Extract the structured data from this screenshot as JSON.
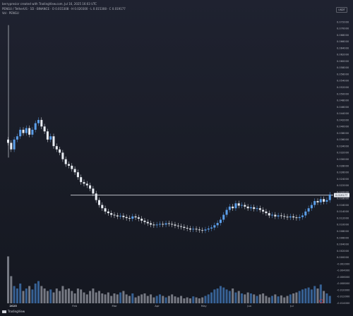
{
  "header": {
    "credit": "berrypresior created with TradingView.com, Jul 16, 2025 16:03 UTC",
    "symbol_line": "PENGU / TetherUS · 1D · BINANCE · O 0.015308 · H 0.020300 · L 0.015308 · C 0.019177",
    "volume_label": "Vol · PENGU"
  },
  "scale": {
    "unit_badge": "USDT"
  },
  "footer": {
    "brand": "TradingView"
  },
  "chart_data": {
    "type": "candlestick",
    "x": [
      "2025",
      "Feb",
      "Mar",
      "Apr",
      "May",
      "Jun",
      "Jul"
    ],
    "price_axis_ticks": [
      "0.072000",
      "0.070000",
      "0.068000",
      "0.066000",
      "0.064000",
      "0.062000",
      "0.060000",
      "0.058000",
      "0.056000",
      "0.054000",
      "0.052000",
      "0.050000",
      "0.048000",
      "0.046000",
      "0.044000",
      "0.042000",
      "0.040000",
      "0.038000",
      "0.036000",
      "0.034000",
      "0.032000",
      "0.030000",
      "0.028000",
      "0.026000",
      "0.024000",
      "0.022000",
      "0.020000",
      "0.018000",
      "0.016000",
      "0.014000",
      "0.012000",
      "0.010000",
      "0.008000",
      "0.006000",
      "0.004000",
      "0.002000",
      "0.000000",
      "-0.002000",
      "-0.004000",
      "-0.006000",
      "-0.008000",
      "-0.010000",
      "-0.012000",
      "-0.014000"
    ],
    "current_price_label": "0.019177",
    "horizontal_level": 0.019,
    "ylim": [
      -0.0145,
      0.0735
    ],
    "price_series": [
      0.035,
      0.033,
      0.036,
      0.037,
      0.039,
      0.038,
      0.0395,
      0.0375,
      0.039,
      0.041,
      0.042,
      0.04,
      0.0385,
      0.036,
      0.037,
      0.034,
      0.033,
      0.032,
      0.03,
      0.0285,
      0.028,
      0.027,
      0.026,
      0.0245,
      0.023,
      0.0225,
      0.022,
      0.021,
      0.0195,
      0.0175,
      0.016,
      0.015,
      0.014,
      0.0135,
      0.013,
      0.0128,
      0.0125,
      0.0127,
      0.0123,
      0.012,
      0.0118,
      0.0125,
      0.0122,
      0.0118,
      0.0112,
      0.0108,
      0.0104,
      0.01,
      0.0098,
      0.01,
      0.0102,
      0.01,
      0.0104,
      0.0102,
      0.01,
      0.0097,
      0.0095,
      0.0093,
      0.009,
      0.0088,
      0.0085,
      0.0087,
      0.0085,
      0.0083,
      0.0082,
      0.0085,
      0.0088,
      0.0091,
      0.0098,
      0.0105,
      0.0115,
      0.013,
      0.0145,
      0.0155,
      0.015,
      0.0165,
      0.0158,
      0.016,
      0.0155,
      0.015,
      0.0153,
      0.0148,
      0.015,
      0.0145,
      0.014,
      0.0135,
      0.0128,
      0.013,
      0.0125,
      0.0128,
      0.0126,
      0.0124,
      0.0122,
      0.0125,
      0.0122,
      0.012,
      0.0123,
      0.0128,
      0.014,
      0.015,
      0.016,
      0.0172,
      0.0168,
      0.0178,
      0.017,
      0.0175,
      0.0192
    ],
    "volume_series": [
      0.95,
      0.55,
      0.35,
      0.3,
      0.4,
      0.25,
      0.3,
      0.35,
      0.28,
      0.4,
      0.45,
      0.35,
      0.3,
      0.25,
      0.28,
      0.22,
      0.3,
      0.25,
      0.35,
      0.28,
      0.3,
      0.25,
      0.2,
      0.3,
      0.28,
      0.22,
      0.18,
      0.25,
      0.3,
      0.22,
      0.25,
      0.2,
      0.18,
      0.22,
      0.15,
      0.2,
      0.18,
      0.22,
      0.25,
      0.18,
      0.15,
      0.2,
      0.12,
      0.15,
      0.18,
      0.2,
      0.15,
      0.18,
      0.12,
      0.15,
      0.18,
      0.15,
      0.12,
      0.15,
      0.18,
      0.14,
      0.12,
      0.15,
      0.1,
      0.12,
      0.1,
      0.14,
      0.12,
      0.1,
      0.12,
      0.15,
      0.18,
      0.22,
      0.28,
      0.3,
      0.35,
      0.32,
      0.28,
      0.25,
      0.3,
      0.22,
      0.25,
      0.2,
      0.18,
      0.22,
      0.2,
      0.18,
      0.15,
      0.18,
      0.2,
      0.15,
      0.12,
      0.15,
      0.18,
      0.14,
      0.16,
      0.12,
      0.15,
      0.18,
      0.2,
      0.22,
      0.25,
      0.28,
      0.3,
      0.32,
      0.28,
      0.35,
      0.3,
      0.38,
      0.25,
      0.2,
      0.15
    ],
    "colors": {
      "up": "#5b9ee9",
      "down": "#e8ecf2",
      "volume": "#878b94",
      "volume_up": "#3d6fa8",
      "level": "#d1d4dc"
    }
  }
}
